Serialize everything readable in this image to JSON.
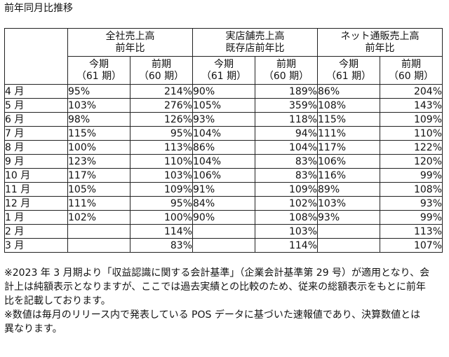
{
  "title": "前年同月比推移",
  "groups": [
    {
      "line1": "全社売上高",
      "line2": "前年比"
    },
    {
      "line1": "実店舗売上高",
      "line2": "既存店前年比"
    },
    {
      "line1": "ネット通販売上高",
      "line2": "前年比"
    }
  ],
  "subheaders": [
    {
      "line1": "今期",
      "line2": "（61 期）"
    },
    {
      "line1": "前期",
      "line2": "（60 期）"
    },
    {
      "line1": "今期",
      "line2": "（61 期）"
    },
    {
      "line1": "前期",
      "line2": "（60 期）"
    },
    {
      "line1": "今期",
      "line2": "（61 期）"
    },
    {
      "line1": "前期",
      "line2": "（60 期）"
    }
  ],
  "rows": [
    {
      "month": "4 月",
      "values": [
        "95%",
        "214%",
        "90%",
        "189%",
        "86%",
        "204%"
      ]
    },
    {
      "month": "5 月",
      "values": [
        "103%",
        "276%",
        "105%",
        "359%",
        "108%",
        "143%"
      ]
    },
    {
      "month": "6 月",
      "values": [
        "98%",
        "126%",
        "93%",
        "118%",
        "115%",
        "109%"
      ]
    },
    {
      "month": "7 月",
      "values": [
        "115%",
        "95%",
        "104%",
        "94%",
        "111%",
        "110%"
      ]
    },
    {
      "month": "8 月",
      "values": [
        "100%",
        "113%",
        "86%",
        "104%",
        "117%",
        "122%"
      ]
    },
    {
      "month": "9 月",
      "values": [
        "123%",
        "110%",
        "104%",
        "83%",
        "106%",
        "120%"
      ]
    },
    {
      "month": "10 月",
      "values": [
        "117%",
        "103%",
        "106%",
        "83%",
        "116%",
        "99%"
      ]
    },
    {
      "month": "11 月",
      "values": [
        "105%",
        "109%",
        "91%",
        "109%",
        "89%",
        "108%"
      ]
    },
    {
      "month": "12 月",
      "values": [
        "111%",
        "95%",
        "84%",
        "102%",
        "103%",
        "93%"
      ]
    },
    {
      "month": "1 月",
      "values": [
        "102%",
        "100%",
        "90%",
        "108%",
        "93%",
        "99%"
      ]
    },
    {
      "month": "2 月",
      "values": [
        "",
        "114%",
        "",
        "103%",
        "",
        "113%"
      ]
    },
    {
      "month": "3 月",
      "values": [
        "",
        "83%",
        "",
        "114%",
        "",
        "107%"
      ]
    }
  ],
  "notes": {
    "note1": [
      "※2023 年 3 月期より「収益認識に関する会計基準」（企業会計基準第 29 号）が適用となり、会",
      "計上は純額表示となりますが、ここでは過去実績との比較のため、従来の総額表示をもとに前年",
      "比を記載しております。"
    ],
    "note2": [
      "※数値は毎月のリリース内で発表している POS データに基づいた速報値であり、決算数値とは",
      "異なります。"
    ]
  }
}
